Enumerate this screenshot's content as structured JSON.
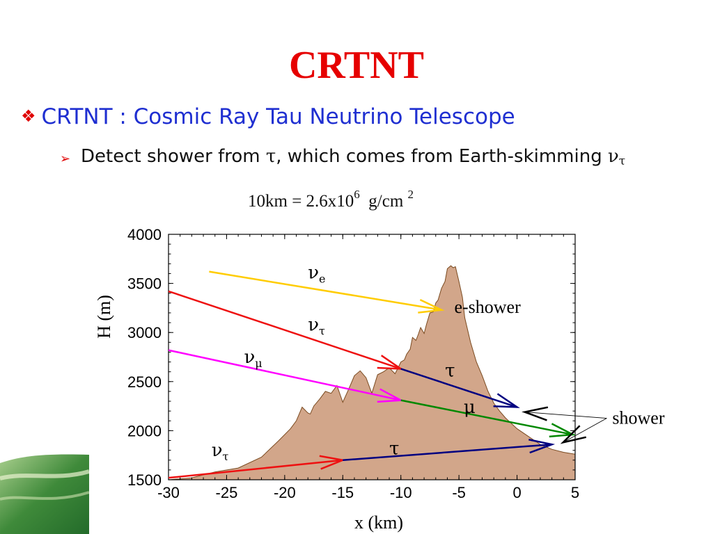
{
  "slide": {
    "title": "CRTNT",
    "bullet1": "CRTNT : Cosmic Ray Tau Neutrino Telescope",
    "bullet2_a": "Detect shower from ",
    "bullet2_tau": "τ",
    "bullet2_b": ", which comes from Earth-skimming ",
    "bullet2_nu": "ν",
    "bullet2_nu_sub": "τ",
    "equation": "10km = 2.6x10",
    "equation_exp1": "6",
    "equation_unit": "g/cm",
    "equation_exp2": "2",
    "icons": {
      "bullet1": "diamond-bullet-icon",
      "bullet2": "arrow-bullet-icon"
    },
    "colors": {
      "title": "#e60000",
      "bullet1": "#1f2fd1",
      "mountain": "#d2a68a",
      "mountain_edge": "#7a4a20"
    }
  },
  "chart_data": {
    "type": "line",
    "xlabel": "x  (km)",
    "ylabel": "H  (m)",
    "xlim": [
      -30,
      5
    ],
    "ylim": [
      1500,
      4000
    ],
    "xticks": [
      -30,
      -25,
      -20,
      -15,
      -10,
      -5,
      0,
      5
    ],
    "yticks": [
      1500,
      2000,
      2500,
      3000,
      3500,
      4000
    ],
    "grid": false,
    "mountain_profile": {
      "x": [
        -30,
        -28,
        -26,
        -24,
        -22,
        -20.5,
        -19.5,
        -19,
        -18.5,
        -18,
        -17.8,
        -17.5,
        -17,
        -16.5,
        -16,
        -15.5,
        -15,
        -14.5,
        -14,
        -13.5,
        -13,
        -12.5,
        -12,
        -11.5,
        -11,
        -10.5,
        -10.2,
        -10,
        -9.7,
        -9.5,
        -9.2,
        -9,
        -8.7,
        -8.5,
        -8.3,
        -8,
        -7.8,
        -7.5,
        -7.2,
        -7,
        -6.8,
        -6.5,
        -6.2,
        -6,
        -5.7,
        -5.5,
        -5.3,
        -5,
        -4.7,
        -4.5,
        -4,
        -3.5,
        -3,
        -2.5,
        -2,
        -1.5,
        -1,
        0,
        1,
        2,
        3,
        4,
        5
      ],
      "y": [
        1500,
        1520,
        1580,
        1620,
        1730,
        1900,
        2020,
        2100,
        2240,
        2180,
        2170,
        2250,
        2320,
        2400,
        2380,
        2460,
        2290,
        2420,
        2560,
        2610,
        2540,
        2380,
        2570,
        2600,
        2640,
        2580,
        2650,
        2700,
        2720,
        2780,
        2830,
        2950,
        2920,
        2980,
        3050,
        2990,
        3080,
        3200,
        3210,
        3300,
        3330,
        3450,
        3520,
        3650,
        3680,
        3660,
        3670,
        3520,
        3360,
        3150,
        2900,
        2700,
        2560,
        2400,
        2280,
        2200,
        2130,
        2020,
        1940,
        1860,
        1810,
        1780,
        1760
      ]
    },
    "series": [
      {
        "name": "ν",
        "sub": "e",
        "color": "#ffcc00",
        "x": [
          -26.5,
          -6.5
        ],
        "y": [
          3620,
          3230
        ],
        "label_x": -18,
        "label_y": 3550
      },
      {
        "name": "ν",
        "sub": "τ",
        "color": "#ee1111",
        "x": [
          -30,
          -10
        ],
        "y": [
          3420,
          2630
        ],
        "label_x": -18,
        "label_y": 3020
      },
      {
        "name": "ν",
        "sub": "μ",
        "color": "#ff00ff",
        "x": [
          -30,
          -10
        ],
        "y": [
          2820,
          2310
        ],
        "label_x": -23.5,
        "label_y": 2690
      },
      {
        "name": "ν",
        "sub": "τ",
        "color": "#ee1111",
        "x": [
          -30,
          -15
        ],
        "y": [
          1520,
          1700
        ],
        "label_x": -26.3,
        "label_y": 1740
      },
      {
        "name": "τ",
        "sub": "",
        "color": "#000080",
        "x": [
          -10,
          0
        ],
        "y": [
          2630,
          2240
        ],
        "label_x": -6.2,
        "label_y": 2550
      },
      {
        "name": "μ",
        "sub": "",
        "color": "#008800",
        "x": [
          -10,
          4.8
        ],
        "y": [
          2310,
          1960
        ],
        "label_x": -4.6,
        "label_y": 2180
      },
      {
        "name": "τ",
        "sub": "",
        "color": "#000080",
        "x": [
          -15,
          3
        ],
        "y": [
          1700,
          1860
        ],
        "label_x": -11,
        "label_y": 1760
      }
    ],
    "annotations": [
      {
        "text": "e-shower",
        "x": -5.4,
        "y": 3200
      },
      {
        "text": "shower",
        "x": 8.2,
        "y": 2070
      }
    ]
  }
}
